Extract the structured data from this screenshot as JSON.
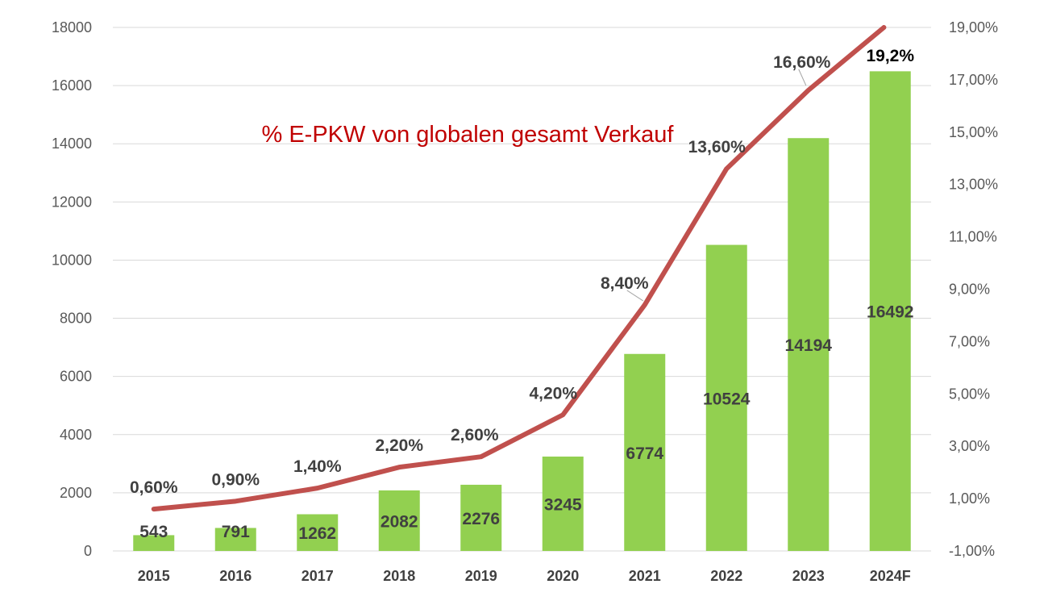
{
  "chart_data": {
    "type": "bar",
    "title": "% E-PKW von globalen gesamt Verkauf",
    "categories": [
      "2015",
      "2016",
      "2017",
      "2018",
      "2019",
      "2020",
      "2021",
      "2022",
      "2023",
      "2024F"
    ],
    "series": [
      {
        "type": "bar",
        "axis": "left",
        "values": [
          543,
          791,
          1262,
          2082,
          2276,
          3245,
          6774,
          10524,
          14194,
          16492
        ],
        "data_labels": [
          "543",
          "791",
          "1262",
          "2082",
          "2276",
          "3245",
          "6774",
          "10524",
          "14194",
          "16492"
        ]
      },
      {
        "type": "line",
        "axis": "right",
        "values": [
          0.6,
          0.9,
          1.4,
          2.2,
          2.6,
          4.2,
          8.4,
          13.6,
          16.6,
          19.2
        ],
        "data_labels": [
          "0,60%",
          "0,90%",
          "1,40%",
          "2,20%",
          "2,60%",
          "4,20%",
          "8,40%",
          "13,60%",
          "16,60%",
          "19,2%"
        ]
      }
    ],
    "y_left": {
      "ylim": [
        0,
        18000
      ],
      "ticks": [
        "0",
        "2000",
        "4000",
        "6000",
        "8000",
        "10000",
        "12000",
        "14000",
        "16000",
        "18000"
      ]
    },
    "y_right": {
      "ylim": [
        -1,
        19
      ],
      "tick_values": [
        -1,
        1,
        3,
        5,
        7,
        9,
        11,
        13,
        15,
        17,
        19
      ],
      "ticks": [
        "-1,00%",
        "1,00%",
        "3,00%",
        "5,00%",
        "7,00%",
        "9,00%",
        "11,00%",
        "13,00%",
        "15,00%",
        "17,00%",
        "19,00%"
      ]
    },
    "grid": true,
    "legend": "none",
    "colors": {
      "bar": "#92d050",
      "line": "#c0504d",
      "grid": "#d9d9d9",
      "title": "#c00000"
    }
  }
}
